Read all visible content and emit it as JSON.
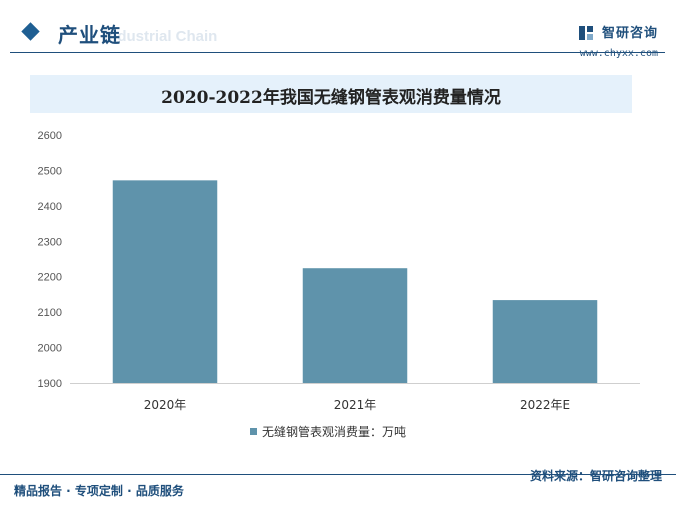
{
  "header": {
    "section_title": "产业链",
    "section_subtitle": "Industrial Chain",
    "brand_name": "智研咨询",
    "brand_url": "www.chyxx.com"
  },
  "footer": {
    "left_text": "精品报告 · 专项定制 · 品质服务",
    "source_text": "资料来源：智研咨询整理"
  },
  "colors": {
    "bar": "#5f93ab",
    "brand": "#1f4f7c",
    "title_bg": "#e5f1fb"
  },
  "chart_data": {
    "type": "bar",
    "title": "2020-2022年我国无缝钢管表观消费量情况",
    "categories": [
      "2020年",
      "2021年",
      "2022年E"
    ],
    "series": [
      {
        "name": "无缝钢管表观消费量：万吨",
        "values": [
          2472,
          2224,
          2134
        ]
      }
    ],
    "ylim": [
      1900,
      2600
    ],
    "yticks": [
      1900,
      2000,
      2100,
      2200,
      2300,
      2400,
      2500,
      2600
    ],
    "legend": "bottom",
    "grid": false
  }
}
